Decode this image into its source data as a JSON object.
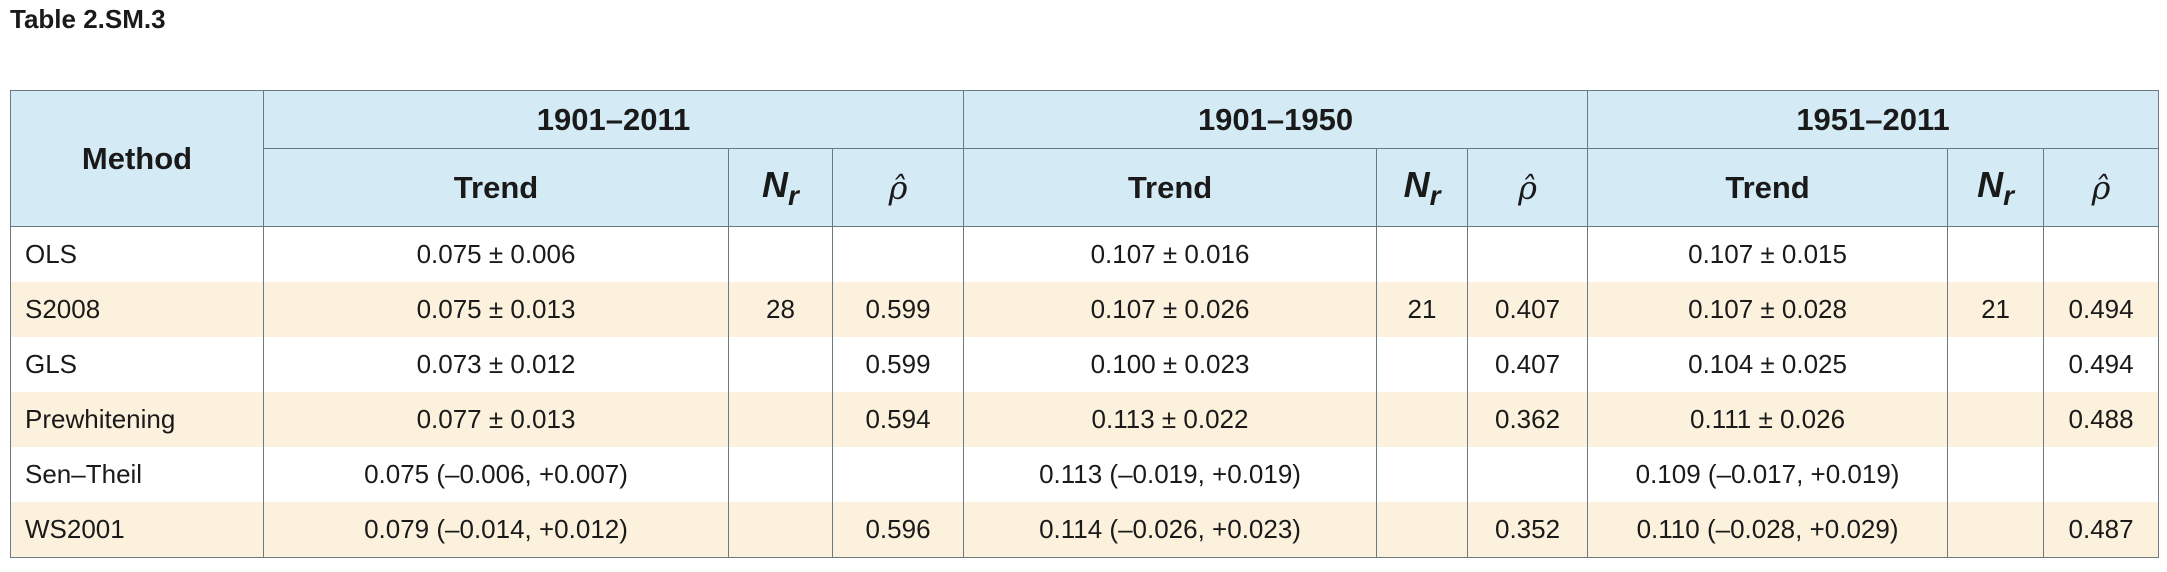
{
  "caption": "Table 2.SM.3",
  "header": {
    "method": "Method",
    "periods": [
      "1901–2011",
      "1901–1950",
      "1951–2011"
    ],
    "trend": "Trend",
    "nr_main": "N",
    "nr_sub": "r",
    "rho": "ρ̂"
  },
  "rows": [
    {
      "method": "OLS",
      "p1_trend": "0.075 ± 0.006",
      "p1_nr": "",
      "p1_rho": "",
      "p2_trend": "0.107 ± 0.016",
      "p2_nr": "",
      "p2_rho": "",
      "p3_trend": "0.107 ± 0.015",
      "p3_nr": "",
      "p3_rho": ""
    },
    {
      "method": "S2008",
      "p1_trend": "0.075 ± 0.013",
      "p1_nr": "28",
      "p1_rho": "0.599",
      "p2_trend": "0.107 ± 0.026",
      "p2_nr": "21",
      "p2_rho": "0.407",
      "p3_trend": "0.107 ± 0.028",
      "p3_nr": "21",
      "p3_rho": "0.494"
    },
    {
      "method": "GLS",
      "p1_trend": "0.073 ± 0.012",
      "p1_nr": "",
      "p1_rho": "0.599",
      "p2_trend": "0.100 ± 0.023",
      "p2_nr": "",
      "p2_rho": "0.407",
      "p3_trend": "0.104 ± 0.025",
      "p3_nr": "",
      "p3_rho": "0.494"
    },
    {
      "method": "Prewhitening",
      "p1_trend": "0.077 ± 0.013",
      "p1_nr": "",
      "p1_rho": "0.594",
      "p2_trend": "0.113 ± 0.022",
      "p2_nr": "",
      "p2_rho": "0.362",
      "p3_trend": "0.111 ± 0.026",
      "p3_nr": "",
      "p3_rho": "0.488"
    },
    {
      "method": "Sen–Theil",
      "p1_trend": "0.075 (–0.006, +0.007)",
      "p1_nr": "",
      "p1_rho": "",
      "p2_trend": "0.113 (–0.019, +0.019)",
      "p2_nr": "",
      "p2_rho": "",
      "p3_trend": "0.109 (–0.017, +0.019)",
      "p3_nr": "",
      "p3_rho": ""
    },
    {
      "method": "WS2001",
      "p1_trend": "0.079 (–0.014, +0.012)",
      "p1_nr": "",
      "p1_rho": "0.596",
      "p2_trend": "0.114 (–0.026, +0.023)",
      "p2_nr": "",
      "p2_rho": "0.352",
      "p3_trend": "0.110 (–0.028, +0.029)",
      "p3_nr": "",
      "p3_rho": "0.487"
    }
  ],
  "colors": {
    "header_bg": "#d4ebf5",
    "stripe_bg": "#fbf1dc",
    "border": "#6a7a84"
  }
}
